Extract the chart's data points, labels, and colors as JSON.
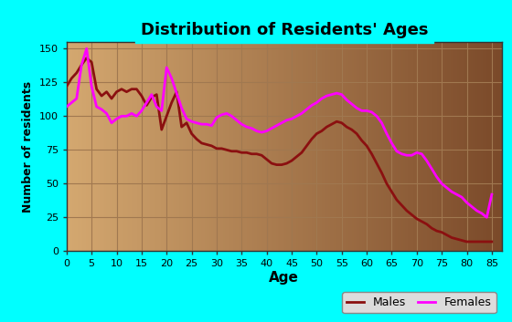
{
  "title": "Distribution of Residents' Ages",
  "xlabel": "Age",
  "ylabel": "Number of residents",
  "x_ticks": [
    0,
    5,
    10,
    15,
    20,
    25,
    30,
    35,
    40,
    45,
    50,
    55,
    60,
    65,
    70,
    75,
    80,
    85
  ],
  "y_ticks": [
    0,
    25,
    50,
    75,
    100,
    125,
    150
  ],
  "xlim": [
    0,
    87
  ],
  "ylim": [
    0,
    155
  ],
  "background_outer": "#00FFFF",
  "background_inner_left": "#D4A870",
  "background_inner_right": "#7B4A2A",
  "grid_color": "#A07850",
  "males_color": "#8B1010",
  "females_color": "#FF00FF",
  "males_ages": [
    0,
    1,
    2,
    3,
    4,
    5,
    6,
    7,
    8,
    9,
    10,
    11,
    12,
    13,
    14,
    15,
    16,
    17,
    18,
    19,
    20,
    21,
    22,
    23,
    24,
    25,
    26,
    27,
    28,
    29,
    30,
    31,
    32,
    33,
    34,
    35,
    36,
    37,
    38,
    39,
    40,
    41,
    42,
    43,
    44,
    45,
    46,
    47,
    48,
    49,
    50,
    51,
    52,
    53,
    54,
    55,
    56,
    57,
    58,
    59,
    60,
    61,
    62,
    63,
    64,
    65,
    66,
    67,
    68,
    69,
    70,
    71,
    72,
    73,
    74,
    75,
    76,
    77,
    78,
    79,
    80,
    81,
    82,
    83,
    84,
    85
  ],
  "males_vals": [
    122,
    128,
    132,
    138,
    143,
    140,
    120,
    115,
    118,
    113,
    118,
    120,
    118,
    120,
    120,
    115,
    108,
    114,
    116,
    90,
    100,
    110,
    118,
    92,
    95,
    87,
    83,
    80,
    79,
    78,
    76,
    76,
    75,
    74,
    74,
    73,
    73,
    72,
    72,
    71,
    68,
    65,
    64,
    64,
    65,
    67,
    70,
    73,
    78,
    83,
    87,
    89,
    92,
    94,
    96,
    95,
    92,
    90,
    87,
    82,
    78,
    72,
    65,
    58,
    50,
    44,
    38,
    34,
    30,
    27,
    24,
    22,
    20,
    17,
    15,
    14,
    12,
    10,
    9,
    8,
    7,
    7,
    7,
    7,
    7,
    7
  ],
  "females_ages": [
    0,
    1,
    2,
    3,
    4,
    5,
    6,
    7,
    8,
    9,
    10,
    11,
    12,
    13,
    14,
    15,
    16,
    17,
    18,
    19,
    20,
    21,
    22,
    23,
    24,
    25,
    26,
    27,
    28,
    29,
    30,
    31,
    32,
    33,
    34,
    35,
    36,
    37,
    38,
    39,
    40,
    41,
    42,
    43,
    44,
    45,
    46,
    47,
    48,
    49,
    50,
    51,
    52,
    53,
    54,
    55,
    56,
    57,
    58,
    59,
    60,
    61,
    62,
    63,
    64,
    65,
    66,
    67,
    68,
    69,
    70,
    71,
    72,
    73,
    74,
    75,
    76,
    77,
    78,
    79,
    80,
    81,
    82,
    83,
    84,
    85
  ],
  "females_vals": [
    107,
    110,
    113,
    138,
    150,
    122,
    107,
    105,
    102,
    95,
    98,
    100,
    100,
    102,
    100,
    104,
    110,
    116,
    107,
    104,
    136,
    128,
    117,
    106,
    98,
    96,
    95,
    94,
    94,
    93,
    99,
    101,
    102,
    100,
    97,
    94,
    92,
    91,
    89,
    88,
    89,
    91,
    93,
    95,
    97,
    98,
    100,
    102,
    105,
    108,
    110,
    113,
    115,
    116,
    117,
    116,
    112,
    109,
    106,
    104,
    104,
    103,
    100,
    95,
    87,
    80,
    74,
    72,
    71,
    71,
    73,
    72,
    67,
    61,
    55,
    50,
    47,
    44,
    42,
    40,
    36,
    33,
    30,
    28,
    25,
    42
  ],
  "legend_box_color": "#DCDCDC",
  "legend_box_edge": "#888888"
}
